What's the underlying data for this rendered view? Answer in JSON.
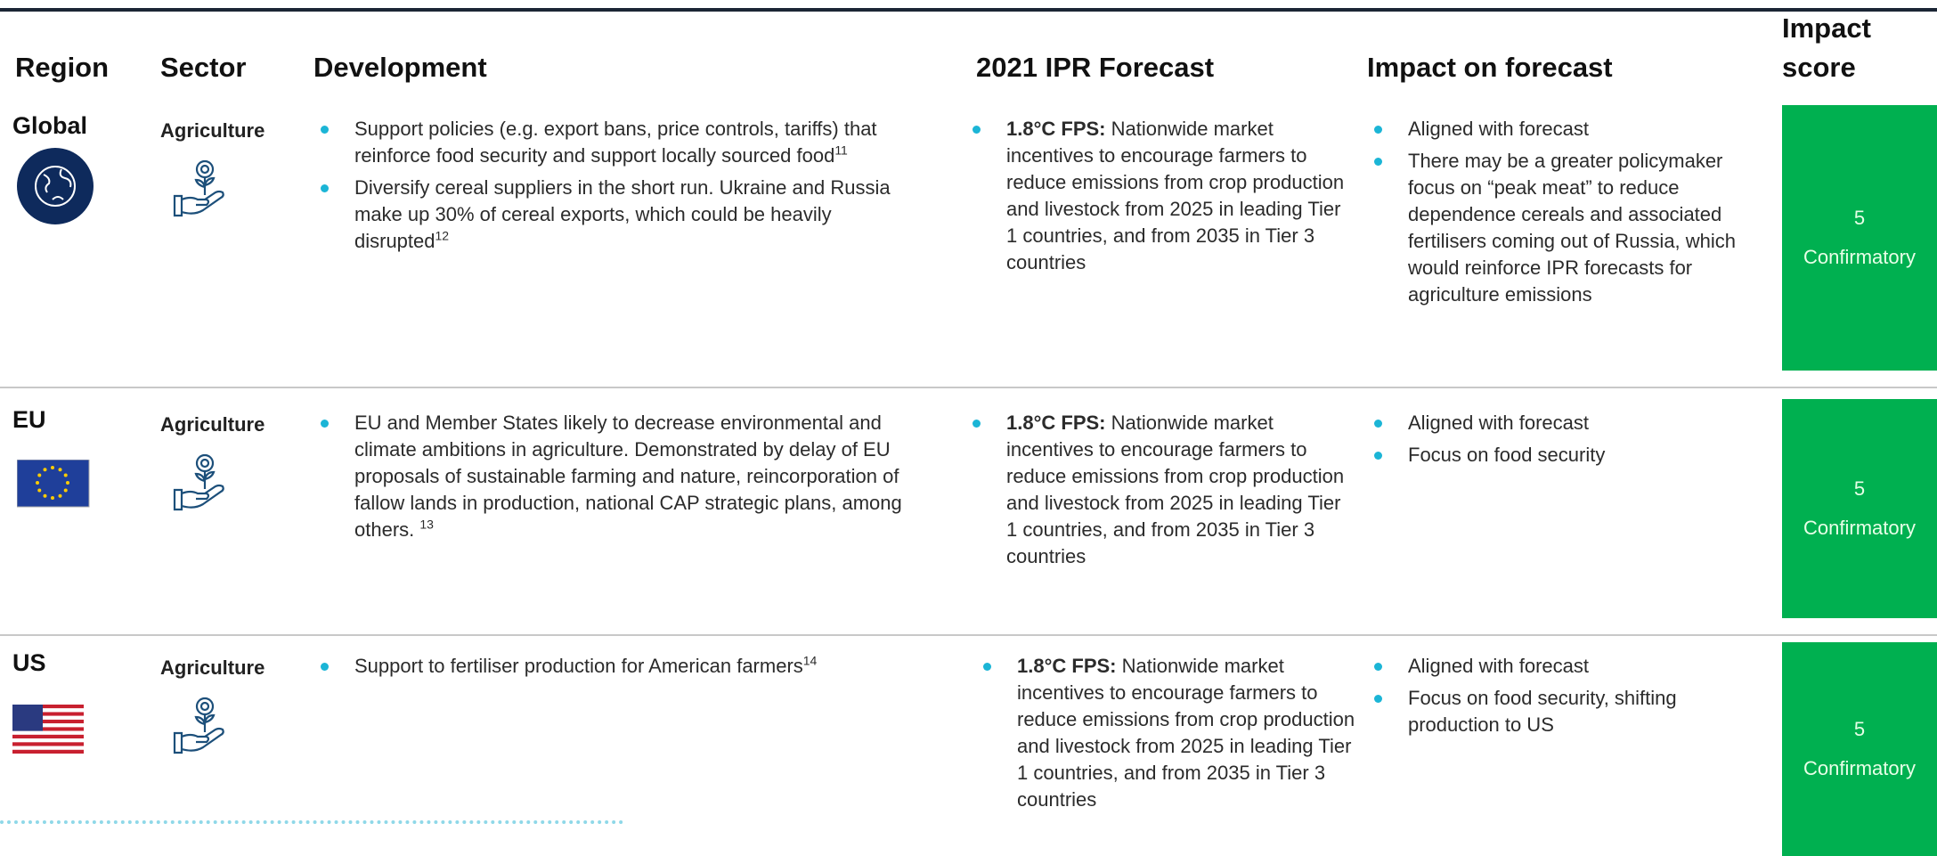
{
  "header": {
    "columns": [
      "Region",
      "Sector",
      "Development",
      "2021 IPR Forecast",
      "Impact on forecast",
      "Impact score"
    ]
  },
  "rows": [
    {
      "region": "Global",
      "sector": "Agriculture",
      "development": [
        {
          "text": "Support policies (e.g. export bans, price controls, tariffs) that reinforce food security and support locally sourced food",
          "note": "11"
        },
        {
          "text": "Diversify cereal suppliers in the short run. Ukraine and Russia make up 30% of cereal exports, which could be heavily disrupted",
          "note": "12"
        }
      ],
      "forecast": {
        "label": "1.8°C FPS:",
        "text": "Nationwide market incentives to encourage farmers to reduce emissions from crop production and livestock from 2025 in leading Tier 1 countries, and from 2035 in Tier 3 countries"
      },
      "impact": [
        "Aligned with forecast",
        "There may be a greater policymaker focus on “peak meat” to reduce dependence cereals and associated fertilisers coming out of Russia, which would reinforce IPR forecasts for agriculture emissions"
      ],
      "score": {
        "value": "5",
        "label": "Confirmatory"
      }
    },
    {
      "region": "EU",
      "sector": "Agriculture",
      "development": [
        {
          "text": "EU and Member States likely to decrease environmental and climate ambitions in agriculture. Demonstrated by delay of EU proposals of sustainable farming and nature, reincorporation of fallow lands in production, national CAP strategic plans, among others. ",
          "note": "13"
        }
      ],
      "forecast": {
        "label": "1.8°C FPS:",
        "text": "Nationwide market incentives to encourage farmers to reduce emissions from crop production and livestock from 2025 in leading Tier 1 countries, and from 2035 in Tier 3 countries"
      },
      "impact": [
        "Aligned with forecast",
        "Focus on food security"
      ],
      "score": {
        "value": "5",
        "label": "Confirmatory"
      }
    },
    {
      "region": "US",
      "sector": "Agriculture",
      "development": [
        {
          "text": "Support to fertiliser production for American farmers",
          "note": "14"
        }
      ],
      "forecast": {
        "label": "1.8°C FPS:",
        "text": "Nationwide market incentives to encourage farmers to reduce emissions from crop production and livestock from 2025 in leading Tier 1 countries, and from 2035 in Tier 3 countries"
      },
      "impact": [
        "Aligned with forecast",
        "Focus on food security, shifting production to US"
      ],
      "score": {
        "value": "5",
        "label": "Confirmatory"
      }
    }
  ]
}
